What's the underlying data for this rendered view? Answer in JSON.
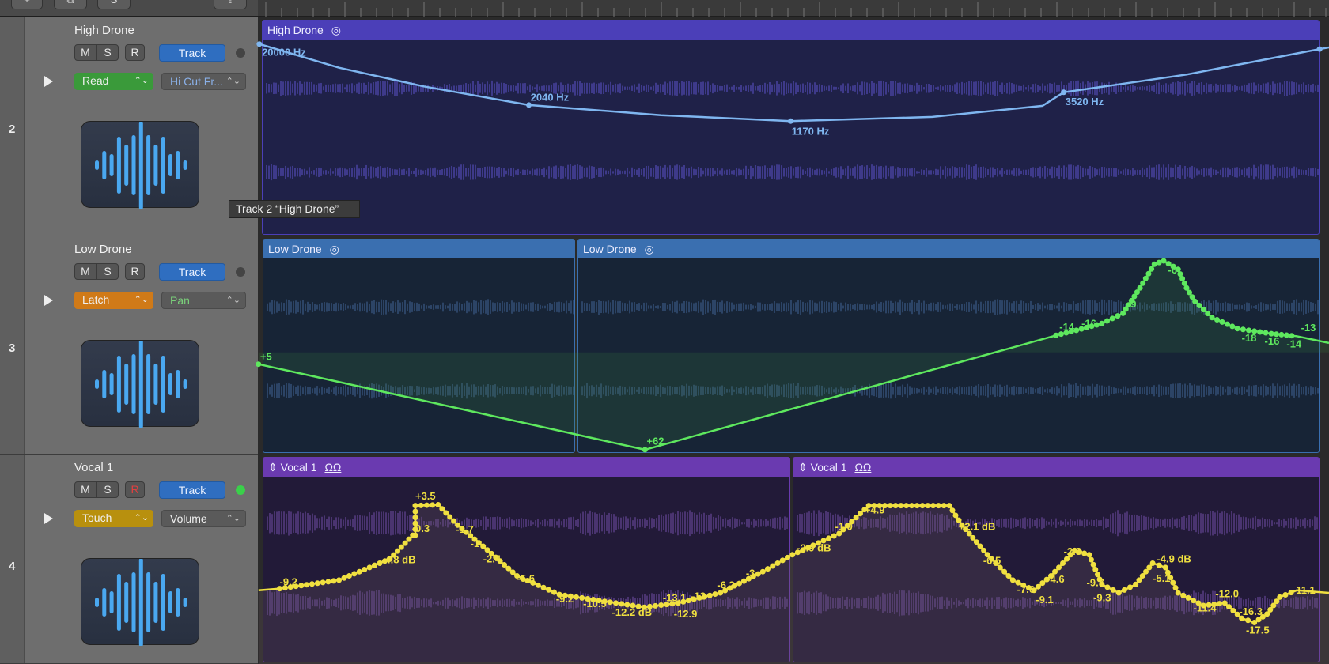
{
  "toolbar": {
    "buttons": [
      "+",
      "⧉",
      "S",
      "⇪"
    ]
  },
  "tooltip": "Track 2 “High Drone”",
  "tracks": [
    {
      "number": "2",
      "name": "High Drone",
      "mute": "M",
      "solo": "S",
      "record": "R",
      "track_button": "Track",
      "mode": "Read",
      "mode_color": "#3a9a3a",
      "parameter": "Hi Cut Fr...",
      "param_color": "#8ab0e8",
      "status_dot": "#444444",
      "regions": [
        {
          "name": "High Drone",
          "icon": "◎"
        }
      ],
      "color": "#4b3fb8",
      "body": "#1f2148",
      "automation_labels": [
        "20000 Hz",
        "2040 Hz",
        "1170 Hz",
        "3520 Hz"
      ],
      "automation_color": "#7fb6f0"
    },
    {
      "number": "3",
      "name": "Low Drone",
      "mute": "M",
      "solo": "S",
      "record": "R",
      "track_button": "Track",
      "mode": "Latch",
      "mode_color": "#d07a18",
      "parameter": "Pan",
      "param_color": "#7ad07a",
      "status_dot": "#444444",
      "regions": [
        {
          "name": "Low Drone",
          "icon": "◎"
        },
        {
          "name": "Low Drone",
          "icon": "◎"
        }
      ],
      "color": "#3a6fb0",
      "body": "#172436",
      "automation_labels": [
        "+5",
        "+62",
        "-14",
        "-16",
        "-9",
        "-6",
        "-18",
        "-16",
        "-14",
        "-13"
      ],
      "automation_color": "#5ee85e"
    },
    {
      "number": "4",
      "name": "Vocal 1",
      "mute": "M",
      "solo": "S",
      "record": "R",
      "track_button": "Track",
      "mode": "Touch",
      "mode_color": "#b8900e",
      "parameter": "Volume",
      "param_color": "#f0f0f0",
      "status_dot": "#3ad04a",
      "record_active_color": "#e04040",
      "regions": [
        {
          "name": "Vocal 1",
          "icon": "ΩΩ"
        },
        {
          "name": "Vocal 1",
          "icon": "ΩΩ"
        }
      ],
      "color": "#6a3ab0",
      "body": "#221a38",
      "automation_labels": [
        "-9.2",
        "-4.8 dB",
        "-0.3",
        "+3.5",
        "-1.7",
        "-1",
        "-2.4",
        "-5.6",
        "-9.2",
        "-10.5",
        "-12.2 dB",
        "-13.1",
        "-12",
        "-12.9",
        "-6.2",
        "-3",
        "-2.9 dB",
        "-1.0",
        "+4.9",
        "+2.1 dB",
        "-6.5",
        "-7.6",
        "-9.1",
        "-4.6",
        "-2.3",
        "-9.7",
        "-9.3",
        "-4.9 dB",
        "-5.1",
        "-11.4",
        "-12.0",
        "-16.3",
        "-17.5",
        "-11.1"
      ],
      "automation_color": "#f0e040"
    }
  ]
}
